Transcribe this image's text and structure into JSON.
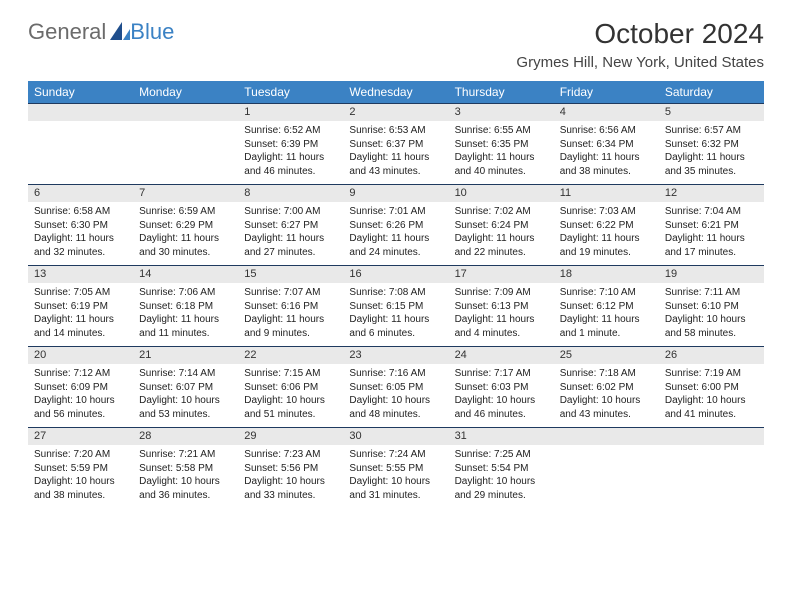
{
  "logo": {
    "text1": "General",
    "text2": "Blue"
  },
  "title": "October 2024",
  "location": "Grymes Hill, New York, United States",
  "colors": {
    "header_bg": "#3b82c4",
    "header_text": "#ffffff",
    "daybar_bg": "#e9e9e9",
    "daybar_border": "#1f3a5f",
    "body_text": "#222222",
    "page_bg": "#ffffff",
    "logo_gray": "#6b6b6b",
    "logo_blue": "#3b82c4"
  },
  "typography": {
    "month_title_pt": 28,
    "location_pt": 15,
    "dow_pt": 12,
    "daynum_pt": 11,
    "body_pt": 10,
    "family": "Arial"
  },
  "dow": [
    "Sunday",
    "Monday",
    "Tuesday",
    "Wednesday",
    "Thursday",
    "Friday",
    "Saturday"
  ],
  "weeks": [
    [
      {
        "n": "",
        "sr": "",
        "ss": "",
        "dl": ""
      },
      {
        "n": "",
        "sr": "",
        "ss": "",
        "dl": ""
      },
      {
        "n": "1",
        "sr": "Sunrise: 6:52 AM",
        "ss": "Sunset: 6:39 PM",
        "dl": "Daylight: 11 hours and 46 minutes."
      },
      {
        "n": "2",
        "sr": "Sunrise: 6:53 AM",
        "ss": "Sunset: 6:37 PM",
        "dl": "Daylight: 11 hours and 43 minutes."
      },
      {
        "n": "3",
        "sr": "Sunrise: 6:55 AM",
        "ss": "Sunset: 6:35 PM",
        "dl": "Daylight: 11 hours and 40 minutes."
      },
      {
        "n": "4",
        "sr": "Sunrise: 6:56 AM",
        "ss": "Sunset: 6:34 PM",
        "dl": "Daylight: 11 hours and 38 minutes."
      },
      {
        "n": "5",
        "sr": "Sunrise: 6:57 AM",
        "ss": "Sunset: 6:32 PM",
        "dl": "Daylight: 11 hours and 35 minutes."
      }
    ],
    [
      {
        "n": "6",
        "sr": "Sunrise: 6:58 AM",
        "ss": "Sunset: 6:30 PM",
        "dl": "Daylight: 11 hours and 32 minutes."
      },
      {
        "n": "7",
        "sr": "Sunrise: 6:59 AM",
        "ss": "Sunset: 6:29 PM",
        "dl": "Daylight: 11 hours and 30 minutes."
      },
      {
        "n": "8",
        "sr": "Sunrise: 7:00 AM",
        "ss": "Sunset: 6:27 PM",
        "dl": "Daylight: 11 hours and 27 minutes."
      },
      {
        "n": "9",
        "sr": "Sunrise: 7:01 AM",
        "ss": "Sunset: 6:26 PM",
        "dl": "Daylight: 11 hours and 24 minutes."
      },
      {
        "n": "10",
        "sr": "Sunrise: 7:02 AM",
        "ss": "Sunset: 6:24 PM",
        "dl": "Daylight: 11 hours and 22 minutes."
      },
      {
        "n": "11",
        "sr": "Sunrise: 7:03 AM",
        "ss": "Sunset: 6:22 PM",
        "dl": "Daylight: 11 hours and 19 minutes."
      },
      {
        "n": "12",
        "sr": "Sunrise: 7:04 AM",
        "ss": "Sunset: 6:21 PM",
        "dl": "Daylight: 11 hours and 17 minutes."
      }
    ],
    [
      {
        "n": "13",
        "sr": "Sunrise: 7:05 AM",
        "ss": "Sunset: 6:19 PM",
        "dl": "Daylight: 11 hours and 14 minutes."
      },
      {
        "n": "14",
        "sr": "Sunrise: 7:06 AM",
        "ss": "Sunset: 6:18 PM",
        "dl": "Daylight: 11 hours and 11 minutes."
      },
      {
        "n": "15",
        "sr": "Sunrise: 7:07 AM",
        "ss": "Sunset: 6:16 PM",
        "dl": "Daylight: 11 hours and 9 minutes."
      },
      {
        "n": "16",
        "sr": "Sunrise: 7:08 AM",
        "ss": "Sunset: 6:15 PM",
        "dl": "Daylight: 11 hours and 6 minutes."
      },
      {
        "n": "17",
        "sr": "Sunrise: 7:09 AM",
        "ss": "Sunset: 6:13 PM",
        "dl": "Daylight: 11 hours and 4 minutes."
      },
      {
        "n": "18",
        "sr": "Sunrise: 7:10 AM",
        "ss": "Sunset: 6:12 PM",
        "dl": "Daylight: 11 hours and 1 minute."
      },
      {
        "n": "19",
        "sr": "Sunrise: 7:11 AM",
        "ss": "Sunset: 6:10 PM",
        "dl": "Daylight: 10 hours and 58 minutes."
      }
    ],
    [
      {
        "n": "20",
        "sr": "Sunrise: 7:12 AM",
        "ss": "Sunset: 6:09 PM",
        "dl": "Daylight: 10 hours and 56 minutes."
      },
      {
        "n": "21",
        "sr": "Sunrise: 7:14 AM",
        "ss": "Sunset: 6:07 PM",
        "dl": "Daylight: 10 hours and 53 minutes."
      },
      {
        "n": "22",
        "sr": "Sunrise: 7:15 AM",
        "ss": "Sunset: 6:06 PM",
        "dl": "Daylight: 10 hours and 51 minutes."
      },
      {
        "n": "23",
        "sr": "Sunrise: 7:16 AM",
        "ss": "Sunset: 6:05 PM",
        "dl": "Daylight: 10 hours and 48 minutes."
      },
      {
        "n": "24",
        "sr": "Sunrise: 7:17 AM",
        "ss": "Sunset: 6:03 PM",
        "dl": "Daylight: 10 hours and 46 minutes."
      },
      {
        "n": "25",
        "sr": "Sunrise: 7:18 AM",
        "ss": "Sunset: 6:02 PM",
        "dl": "Daylight: 10 hours and 43 minutes."
      },
      {
        "n": "26",
        "sr": "Sunrise: 7:19 AM",
        "ss": "Sunset: 6:00 PM",
        "dl": "Daylight: 10 hours and 41 minutes."
      }
    ],
    [
      {
        "n": "27",
        "sr": "Sunrise: 7:20 AM",
        "ss": "Sunset: 5:59 PM",
        "dl": "Daylight: 10 hours and 38 minutes."
      },
      {
        "n": "28",
        "sr": "Sunrise: 7:21 AM",
        "ss": "Sunset: 5:58 PM",
        "dl": "Daylight: 10 hours and 36 minutes."
      },
      {
        "n": "29",
        "sr": "Sunrise: 7:23 AM",
        "ss": "Sunset: 5:56 PM",
        "dl": "Daylight: 10 hours and 33 minutes."
      },
      {
        "n": "30",
        "sr": "Sunrise: 7:24 AM",
        "ss": "Sunset: 5:55 PM",
        "dl": "Daylight: 10 hours and 31 minutes."
      },
      {
        "n": "31",
        "sr": "Sunrise: 7:25 AM",
        "ss": "Sunset: 5:54 PM",
        "dl": "Daylight: 10 hours and 29 minutes."
      },
      {
        "n": "",
        "sr": "",
        "ss": "",
        "dl": ""
      },
      {
        "n": "",
        "sr": "",
        "ss": "",
        "dl": ""
      }
    ]
  ]
}
